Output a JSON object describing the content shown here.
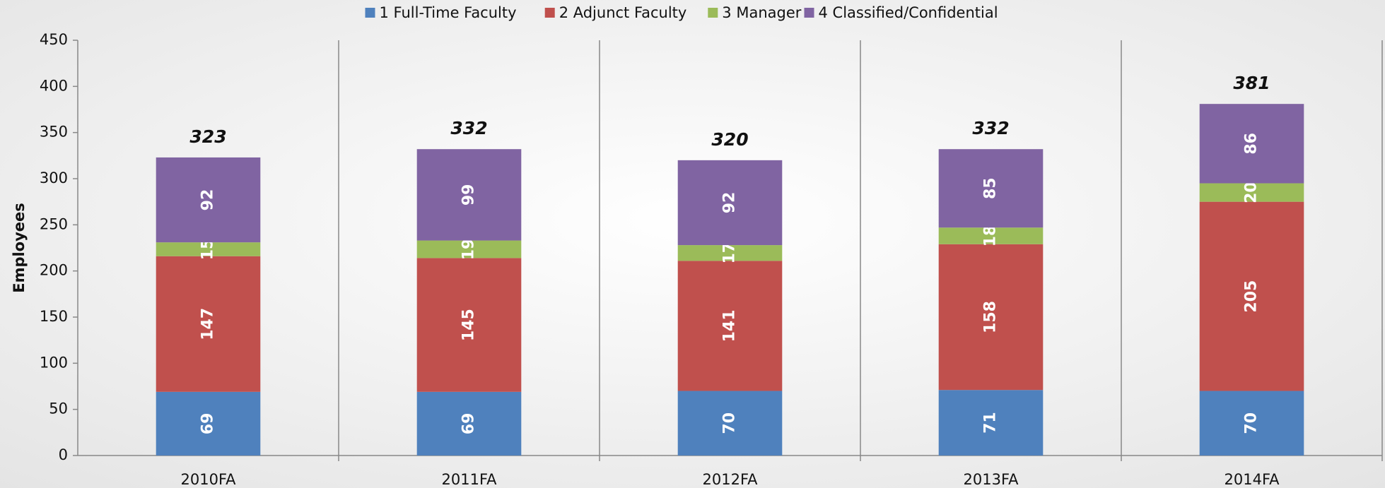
{
  "chart_data": {
    "type": "stacked_bar",
    "categories": [
      "2010FA",
      "2011FA",
      "2012FA",
      "2013FA",
      "2014FA"
    ],
    "series": [
      {
        "name": "1 Full-Time Faculty",
        "color": "#4f81bd",
        "values": [
          69,
          69,
          70,
          71,
          70
        ]
      },
      {
        "name": "2 Adjunct Faculty",
        "color": "#c0504d",
        "values": [
          147,
          145,
          141,
          158,
          205
        ]
      },
      {
        "name": "3 Manager",
        "color": "#9bbb59",
        "values": [
          15,
          19,
          17,
          18,
          20
        ]
      },
      {
        "name": "4 Classified/Confidential",
        "color": "#8064a2",
        "values": [
          92,
          99,
          92,
          85,
          86
        ]
      }
    ],
    "totals": [
      323,
      332,
      320,
      332,
      381
    ],
    "y_label": "Employees",
    "ylim": [
      0,
      450
    ],
    "yticks": [
      0,
      50,
      100,
      150,
      200,
      250,
      300,
      350,
      400,
      450
    ],
    "legend": "top"
  }
}
